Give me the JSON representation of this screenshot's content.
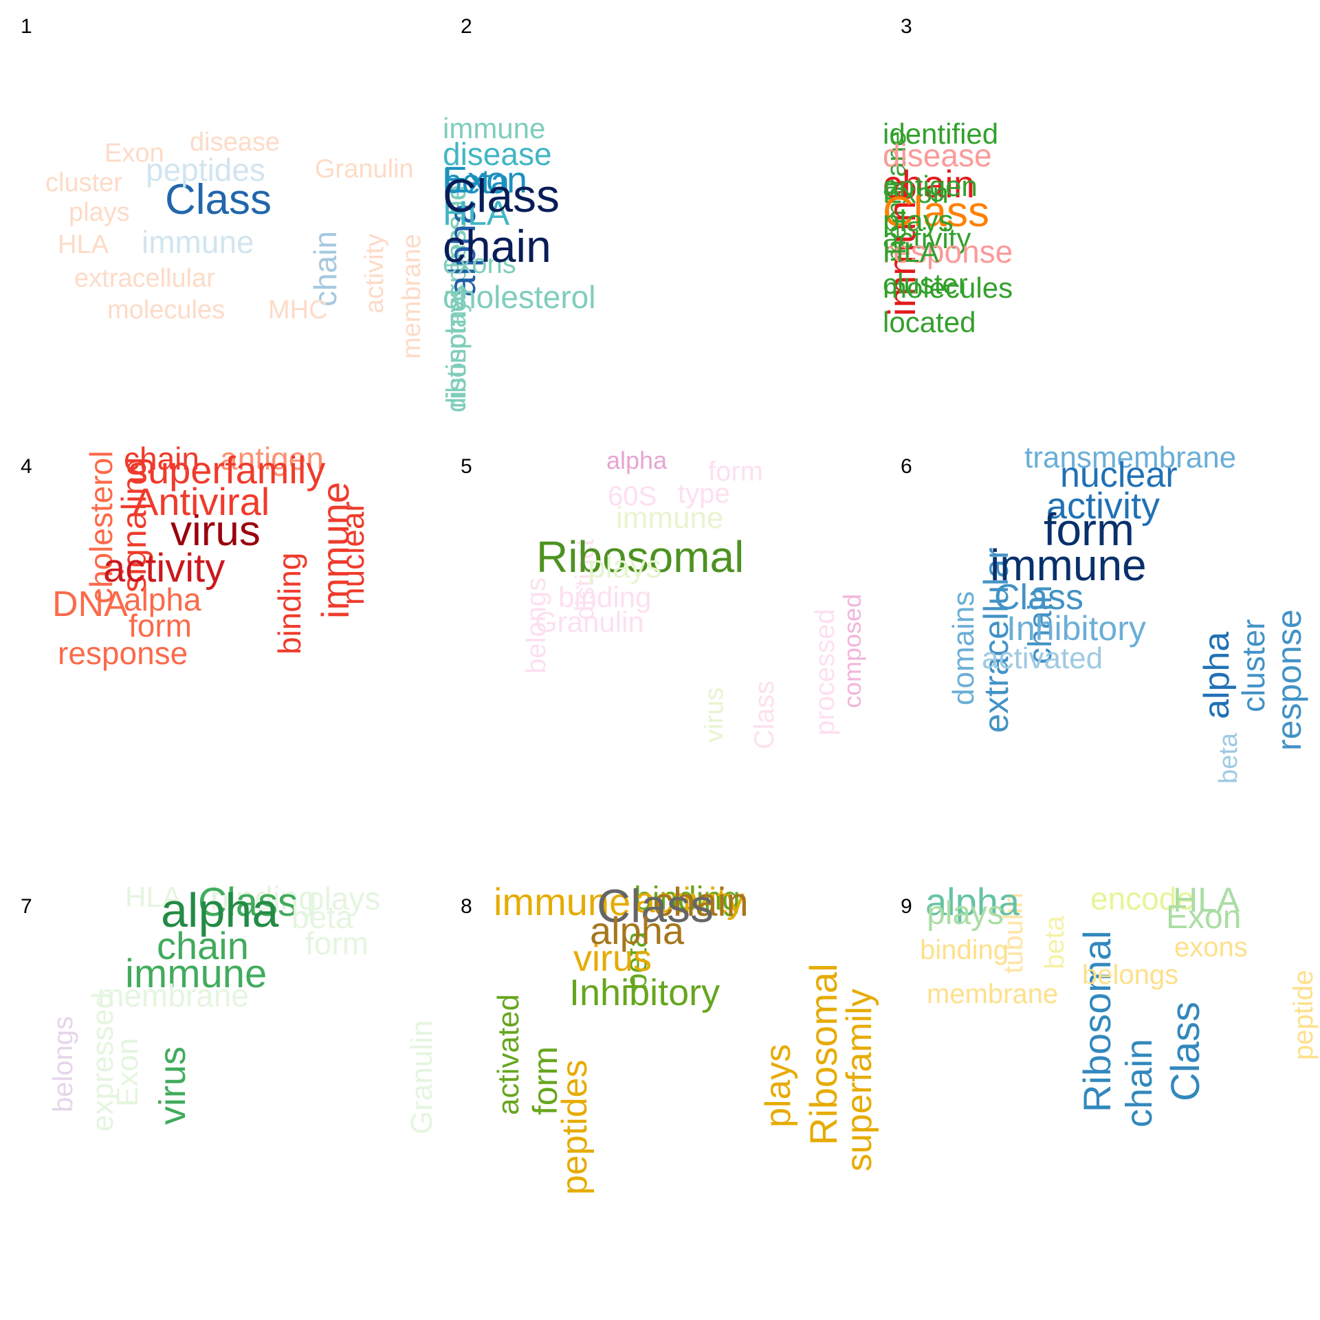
{
  "panels": [
    {
      "number": "1",
      "words": [
        {
          "text": "Class",
          "color": "#2166ac"
        },
        {
          "text": "peptides",
          "color": "#d1e5f0"
        },
        {
          "text": "immune",
          "color": "#d1e5f0"
        },
        {
          "text": "chain",
          "color": "#a6c8e0"
        },
        {
          "text": "Exon",
          "color": "#fddbc7"
        },
        {
          "text": "disease",
          "color": "#fddbc7"
        },
        {
          "text": "Granulin",
          "color": "#fddbc7"
        },
        {
          "text": "cluster",
          "color": "#fddbc7"
        },
        {
          "text": "plays",
          "color": "#fddbc7"
        },
        {
          "text": "HLA",
          "color": "#fddbc7"
        },
        {
          "text": "extracellular",
          "color": "#fddbc7"
        },
        {
          "text": "molecules",
          "color": "#fddbc7"
        },
        {
          "text": "MHC",
          "color": "#fddbc7"
        },
        {
          "text": "activity",
          "color": "#fddbc7"
        },
        {
          "text": "membrane",
          "color": "#fddbc7"
        }
      ]
    },
    {
      "number": "2",
      "words": [
        {
          "text": "immune",
          "color": "#7fcdbb"
        },
        {
          "text": "expressed",
          "color": "#7fcdbb"
        },
        {
          "text": "disease",
          "color": "#41b6c4"
        },
        {
          "text": "encode",
          "color": "#7fcdbb"
        },
        {
          "text": "beta",
          "color": "#1d91c0"
        },
        {
          "text": "Exon",
          "color": "#1d91c0"
        },
        {
          "text": "alpha",
          "color": "#225ea8"
        },
        {
          "text": "plays",
          "color": "#7fcdbb"
        },
        {
          "text": "HLA",
          "color": "#41b6c4"
        },
        {
          "text": "Class",
          "color": "#081d58"
        },
        {
          "text": "distinct",
          "color": "#7fcdbb"
        },
        {
          "text": "ribosomal",
          "color": "#7fcdbb"
        },
        {
          "text": "exons",
          "color": "#7fcdbb"
        },
        {
          "text": "chain",
          "color": "#081d58"
        },
        {
          "text": "cholesterol",
          "color": "#7fcdbb"
        }
      ]
    },
    {
      "number": "3",
      "words": [
        {
          "text": "membrane",
          "color": "#33a02c"
        },
        {
          "text": "identified",
          "color": "#33a02c"
        },
        {
          "text": "disease",
          "color": "#fb9a99"
        },
        {
          "text": "immune",
          "color": "#e31a1c"
        },
        {
          "text": "chain",
          "color": "#e31a1c"
        },
        {
          "text": "antigen",
          "color": "#33a02c"
        },
        {
          "text": "Exon",
          "color": "#33a02c"
        },
        {
          "text": "Class",
          "color": "#ff7f00"
        },
        {
          "text": "plays",
          "color": "#33a02c"
        },
        {
          "text": "activity",
          "color": "#33a02c"
        },
        {
          "text": "response",
          "color": "#fb9a99"
        },
        {
          "text": "HLA",
          "color": "#33a02c"
        },
        {
          "text": "cluster",
          "color": "#33a02c"
        },
        {
          "text": "molecules",
          "color": "#33a02c"
        },
        {
          "text": "located",
          "color": "#33a02c"
        }
      ]
    },
    {
      "number": "4",
      "words": [
        {
          "text": "antigen",
          "color": "#fc9272"
        },
        {
          "text": "chain",
          "color": "#ef3b2c"
        },
        {
          "text": "cholesterol",
          "color": "#fb6a4a"
        },
        {
          "text": "signaling",
          "color": "#ef3b2c"
        },
        {
          "text": "superfamily",
          "color": "#ef3b2c"
        },
        {
          "text": "Antiviral",
          "color": "#ef3b2c"
        },
        {
          "text": "immune",
          "color": "#ef3b2c"
        },
        {
          "text": "nuclear",
          "color": "#ef3b2c"
        },
        {
          "text": "virus",
          "color": "#99000d"
        },
        {
          "text": "activity",
          "color": "#cb181d"
        },
        {
          "text": "binding",
          "color": "#ef3b2c"
        },
        {
          "text": "DNA",
          "color": "#fb6a4a"
        },
        {
          "text": "alpha",
          "color": "#fb6a4a"
        },
        {
          "text": "form",
          "color": "#fb6a4a"
        },
        {
          "text": "response",
          "color": "#fb6a4a"
        }
      ]
    },
    {
      "number": "5",
      "words": [
        {
          "text": "alpha",
          "color": "#e7a5d2"
        },
        {
          "text": "distinct",
          "color": "#fde0ef"
        },
        {
          "text": "form",
          "color": "#fde0ef"
        },
        {
          "text": "belongs",
          "color": "#fde0ef"
        },
        {
          "text": "60S",
          "color": "#fde0ef"
        },
        {
          "text": "type",
          "color": "#fde0ef"
        },
        {
          "text": "processed",
          "color": "#fde0ef"
        },
        {
          "text": "composed",
          "color": "#f1b6da"
        },
        {
          "text": "immune",
          "color": "#e6f5d0"
        },
        {
          "text": "Ribosomal",
          "color": "#4d9221"
        },
        {
          "text": "plays",
          "color": "#e6f5d0"
        },
        {
          "text": "virus",
          "color": "#e6f5d0"
        },
        {
          "text": "Class",
          "color": "#fde0ef"
        },
        {
          "text": "binding",
          "color": "#fde0ef"
        },
        {
          "text": "Granulin",
          "color": "#fde0ef"
        }
      ]
    },
    {
      "number": "6",
      "words": [
        {
          "text": "transmembrane",
          "color": "#6baed6"
        },
        {
          "text": "domains",
          "color": "#6baed6"
        },
        {
          "text": "extracellular",
          "color": "#4292c6"
        },
        {
          "text": "chain",
          "color": "#4292c6"
        },
        {
          "text": "nuclear",
          "color": "#2171b5"
        },
        {
          "text": "activity",
          "color": "#2171b5"
        },
        {
          "text": "alpha",
          "color": "#2171b5"
        },
        {
          "text": "cluster",
          "color": "#4292c6"
        },
        {
          "text": "response",
          "color": "#4292c6"
        },
        {
          "text": "form",
          "color": "#08306b"
        },
        {
          "text": "immune",
          "color": "#08306b"
        },
        {
          "text": "Class",
          "color": "#4292c6"
        },
        {
          "text": "Inhibitory",
          "color": "#6baed6"
        },
        {
          "text": "beta",
          "color": "#9ecae1"
        },
        {
          "text": "activated",
          "color": "#9ecae1"
        }
      ]
    },
    {
      "number": "7",
      "words": [
        {
          "text": "belongs",
          "color": "#e5d5ea"
        },
        {
          "text": "expressed",
          "color": "#e5f5e0"
        },
        {
          "text": "Exon",
          "color": "#e5f5e0"
        },
        {
          "text": "HLA",
          "color": "#e5f5e0"
        },
        {
          "text": "binding",
          "color": "#e5f5e0"
        },
        {
          "text": "virus",
          "color": "#41ab5d"
        },
        {
          "text": "Class",
          "color": "#41ab5d"
        },
        {
          "text": "plays",
          "color": "#e5f5e0"
        },
        {
          "text": "Granulin",
          "color": "#e5f5e0"
        },
        {
          "text": "alpha",
          "color": "#238b45"
        },
        {
          "text": "beta",
          "color": "#e5f5e0"
        },
        {
          "text": "chain",
          "color": "#41ab5d"
        },
        {
          "text": "form",
          "color": "#e5f5e0"
        },
        {
          "text": "immune",
          "color": "#41ab5d"
        },
        {
          "text": "membrane",
          "color": "#e5f5e0"
        }
      ]
    },
    {
      "number": "8",
      "words": [
        {
          "text": "binding",
          "color": "#66a61e"
        },
        {
          "text": "beta",
          "color": "#66a61e"
        },
        {
          "text": "activated",
          "color": "#66a61e"
        },
        {
          "text": "activity",
          "color": "#e6ab02"
        },
        {
          "text": "immune",
          "color": "#e6ab02"
        },
        {
          "text": "chain",
          "color": "#a6761d"
        },
        {
          "text": "Ribosomal",
          "color": "#e6ab02"
        },
        {
          "text": "superfamily",
          "color": "#e6ab02"
        },
        {
          "text": "form",
          "color": "#66a61e"
        },
        {
          "text": "peptides",
          "color": "#e6ab02"
        },
        {
          "text": "Class",
          "color": "#666666"
        },
        {
          "text": "alpha",
          "color": "#a6761d"
        },
        {
          "text": "plays",
          "color": "#e6ab02"
        },
        {
          "text": "virus",
          "color": "#e6ab02"
        },
        {
          "text": "Inhibitory",
          "color": "#66a61e"
        }
      ]
    },
    {
      "number": "9",
      "words": [
        {
          "text": "tubulin",
          "color": "#ffe5a6"
        },
        {
          "text": "beta",
          "color": "#f4f3a7"
        },
        {
          "text": "Ribosomal",
          "color": "#3288bd"
        },
        {
          "text": "encode",
          "color": "#e6f598"
        },
        {
          "text": "alpha",
          "color": "#66c2a5"
        },
        {
          "text": "chain",
          "color": "#3288bd"
        },
        {
          "text": "Class",
          "color": "#3288bd"
        },
        {
          "text": "HLA",
          "color": "#abdda4"
        },
        {
          "text": "peptide",
          "color": "#fee08b"
        },
        {
          "text": "plays",
          "color": "#abdda4"
        },
        {
          "text": "Exon",
          "color": "#abdda4"
        },
        {
          "text": "exons",
          "color": "#fee08b"
        },
        {
          "text": "binding",
          "color": "#fee08b"
        },
        {
          "text": "belongs",
          "color": "#fee08b"
        },
        {
          "text": "membrane",
          "color": "#fee08b"
        }
      ]
    }
  ]
}
